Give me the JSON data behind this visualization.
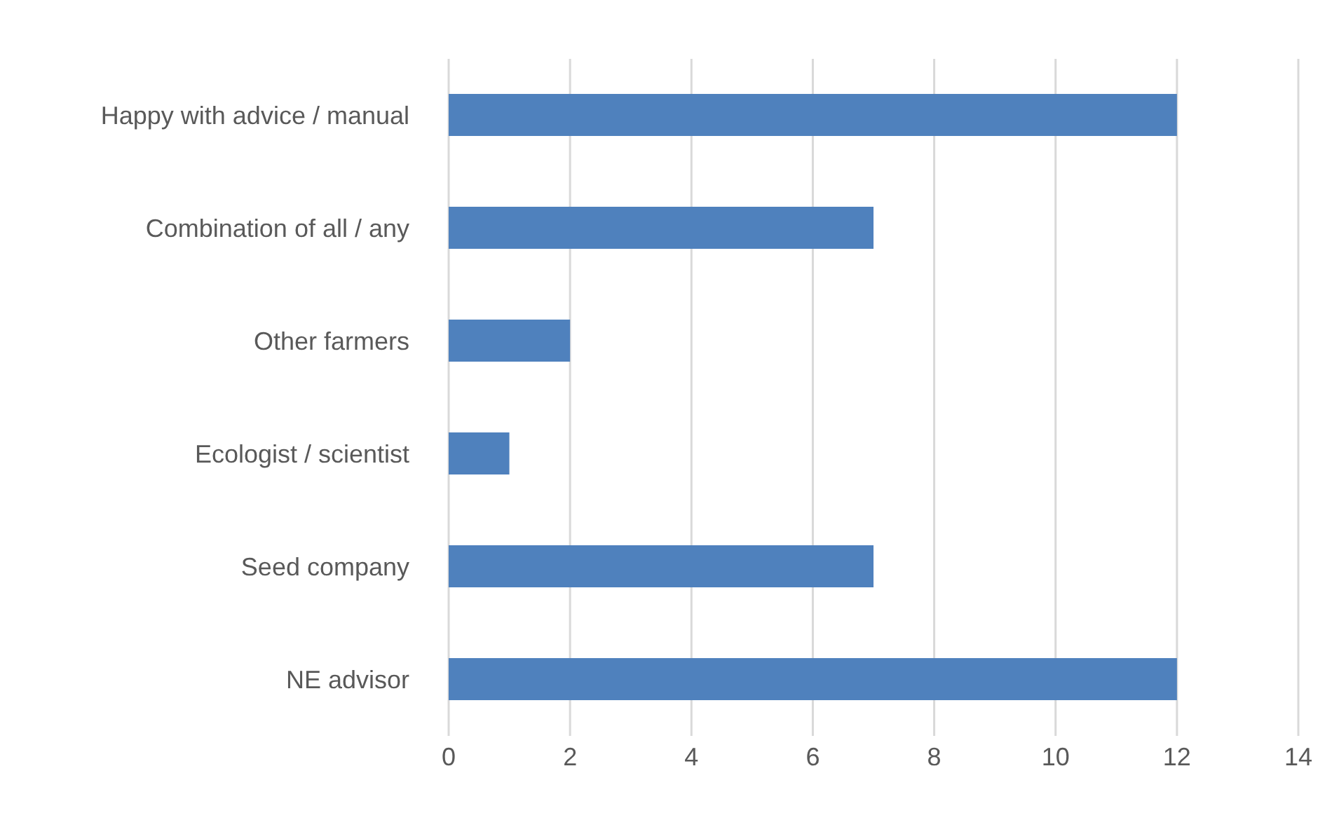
{
  "chart_data": {
    "type": "bar",
    "orientation": "horizontal",
    "categories": [
      "Happy with advice / manual",
      "Combination of all / any",
      "Other farmers",
      "Ecologist / scientist",
      "Seed company",
      "NE advisor"
    ],
    "values": [
      12,
      7,
      2,
      1,
      7,
      12
    ],
    "color": "#4f81bd",
    "xlim": [
      0,
      14
    ],
    "xticks": [
      0,
      2,
      4,
      6,
      8,
      10,
      12,
      14
    ],
    "grid": "x"
  }
}
